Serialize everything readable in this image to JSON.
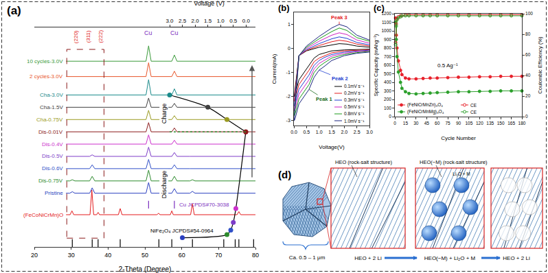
{
  "chart_data": [
    {
      "type": "line",
      "title": "(a)",
      "xlabel": "2-Theta (Degree)",
      "xlim": [
        20,
        80
      ],
      "xticks": [
        20,
        30,
        40,
        50,
        60,
        70,
        80
      ],
      "ylim": [
        -0.3,
        14
      ],
      "tick_labels": "x",
      "grid": false,
      "x": [
        28.6,
        29.6,
        30.3,
        31.0,
        35.0,
        35.7,
        36.4,
        50.3,
        51.0,
        51.7,
        57.3,
        58.0,
        58.7,
        62.2,
        62.9,
        63.6,
        80
      ],
      "series": [
        {
          "name": "10 cycles-3.0V",
          "color": "#3a9a3a",
          "values": [
            11.8,
            11.8,
            11.8,
            11.8,
            11.8,
            11.8,
            11.8,
            11.8,
            12.8,
            11.8,
            11.8,
            12.2,
            11.8,
            11.8,
            11.8,
            11.8,
            11.8
          ]
        },
        {
          "name": "2 cycles-3.0V",
          "color": "#e8552a",
          "values": [
            10.8,
            10.8,
            10.8,
            10.8,
            10.8,
            10.8,
            10.8,
            10.8,
            11.7,
            10.8,
            10.8,
            11.15,
            10.8,
            10.8,
            10.8,
            10.8,
            10.8
          ]
        },
        {
          "name": "Cha-3.0V",
          "color": "#1a8a8a",
          "values": [
            9.6,
            9.6,
            9.6,
            9.6,
            9.6,
            9.6,
            9.6,
            9.6,
            10.6,
            9.6,
            9.6,
            10.0,
            9.6,
            9.6,
            9.6,
            9.6,
            9.6
          ]
        },
        {
          "name": "Cha-1.5V",
          "color": "#404040",
          "values": [
            8.8,
            8.8,
            8.8,
            8.8,
            8.8,
            8.8,
            8.8,
            8.8,
            9.4,
            8.8,
            8.8,
            9.05,
            8.8,
            8.8,
            8.8,
            8.8,
            8.8
          ]
        },
        {
          "name": "Cha-0.75V",
          "color": "#9a9a20",
          "values": [
            8.0,
            8.0,
            8.0,
            8.0,
            8.0,
            8.0,
            8.0,
            8.0,
            8.6,
            8.0,
            8.0,
            8.25,
            8.0,
            8.0,
            8.0,
            8.0,
            8.0
          ]
        },
        {
          "name": "Dis-0.01V",
          "color": "#8b1a1a",
          "values": [
            7.2,
            7.2,
            7.2,
            7.2,
            7.2,
            7.2,
            7.2,
            7.2,
            7.8,
            7.2,
            7.2,
            7.45,
            7.2,
            7.2,
            7.2,
            7.2,
            7.2
          ]
        },
        {
          "name": "Dis-0.4V",
          "color": "#cc2fcc",
          "values": [
            6.4,
            6.4,
            6.4,
            6.4,
            6.4,
            6.4,
            6.4,
            6.4,
            7.0,
            6.4,
            6.4,
            6.65,
            6.4,
            6.4,
            6.4,
            6.4,
            6.4
          ]
        },
        {
          "name": "Dis-0.5V",
          "color": "#7d3cc8",
          "values": [
            5.6,
            5.6,
            5.6,
            5.6,
            5.6,
            5.7,
            5.6,
            5.6,
            6.2,
            5.6,
            5.6,
            5.85,
            5.6,
            5.6,
            5.6,
            5.6,
            5.6
          ]
        },
        {
          "name": "Dis-0.6V",
          "color": "#3050c8",
          "values": [
            4.8,
            4.8,
            4.8,
            4.8,
            4.8,
            5.05,
            4.8,
            4.8,
            5.4,
            4.8,
            4.8,
            5.05,
            4.8,
            4.8,
            4.8,
            4.8,
            4.8
          ]
        },
        {
          "name": "Dis-0.75V",
          "color": "#2e8b2e",
          "values": [
            4.0,
            4.0,
            4.08,
            4.0,
            4.0,
            4.3,
            4.0,
            4.0,
            4.7,
            4.0,
            4.0,
            4.3,
            4.0,
            4.0,
            4.08,
            4.0,
            4.0
          ]
        },
        {
          "name": "Pristine",
          "color": "#2a3fc0",
          "values": [
            3.2,
            3.2,
            3.3,
            3.2,
            3.2,
            3.55,
            3.2,
            3.2,
            3.9,
            3.2,
            3.2,
            3.5,
            3.2,
            3.2,
            3.32,
            3.2,
            3.2
          ]
        },
        {
          "name": "(FeCoNiCrMn)O",
          "color": "#e41a1c",
          "x": [
            28.6,
            29.7,
            30.2,
            30.7,
            35.1,
            35.6,
            36.1,
            36.9,
            37.3,
            37.7,
            42.8,
            43.3,
            43.8,
            53.3,
            53.7,
            54.1,
            56.9,
            57.3,
            57.7,
            62.4,
            62.9,
            63.4,
            75.0,
            75.5,
            76.0,
            80
          ],
          "values": [
            1.8,
            1.8,
            2.05,
            1.8,
            1.8,
            3.4,
            1.8,
            1.8,
            1.95,
            1.8,
            1.8,
            2.2,
            1.8,
            1.8,
            1.9,
            1.8,
            1.8,
            2.05,
            1.8,
            1.8,
            2.5,
            1.8,
            1.8,
            2.0,
            1.8,
            1.8
          ]
        }
      ],
      "references": [
        {
          "name": "Cu JCPDS#70-3038",
          "label": "Cu",
          "color": "#7b2fbe",
          "x": [
            51.0,
            58.0
          ]
        },
        {
          "name": "NiFe₂O₄ JCPDS#54-0964",
          "color": "#000000",
          "x": [
            30.3,
            35.7,
            37.3,
            43.3,
            53.8,
            57.3,
            62.9,
            71.4,
            74.5,
            75.5,
            79.5
          ]
        }
      ],
      "annotations": [
        {
          "text": "(220)",
          "x": 31.3,
          "color": "#e02020"
        },
        {
          "text": "(311)",
          "x": 34.6,
          "color": "#e02020"
        },
        {
          "text": "(222)",
          "x": 37.9,
          "color": "#e02020"
        }
      ]
    },
    {
      "type": "line",
      "xlabel": "Voltage (V)",
      "xlim": [
        3.0,
        -0.1
      ],
      "xticks": [
        {
          "value": 3,
          "label": "3.0"
        },
        {
          "value": 2.5,
          "label": "2.5"
        },
        {
          "value": 2,
          "label": "2.0"
        },
        {
          "value": 1.5,
          "label": "1.5"
        },
        {
          "value": 1,
          "label": "1.0"
        },
        {
          "value": 0.5,
          "label": "0.5"
        },
        {
          "value": 0,
          "label": "0.0"
        }
      ],
      "ylim": [
        -0.3,
        14
      ],
      "tick_labels": "x",
      "marker": "circle",
      "series": [
        {
          "name": "Discharge",
          "color": "#000000",
          "x": [
            2.5,
            0.75,
            0.6,
            0.5,
            0.4,
            0.01
          ],
          "values": [
            0.3,
            0.5,
            0.8,
            1.3,
            2.2,
            7.2
          ],
          "colors": [
            "#2a3fc0",
            "#2e8b2e",
            "#3050c8",
            "#7d3cc8",
            "#cc2fcc",
            "#8b1a1a"
          ]
        },
        {
          "name": "Charge",
          "color": "#000000",
          "x": [
            0.01,
            0.75,
            1.5,
            3.0
          ],
          "values": [
            7.2,
            8.0,
            8.8,
            9.6
          ],
          "colors": [
            "#8b1a1a",
            "#9a9a20",
            "#404040",
            "#1a8a8a"
          ]
        }
      ]
    },
    {
      "type": "line",
      "title": "(b)",
      "xlabel": "Voltage(V)",
      "ylabel": "Current(mA)",
      "xlim": [
        0,
        3.0
      ],
      "xticks": [
        {
          "value": 0,
          "label": "0.0"
        },
        0.5,
        {
          "value": 1,
          "label": "1.0"
        },
        1.5,
        {
          "value": 2,
          "label": "2.0"
        },
        2.5,
        {
          "value": 3,
          "label": "3.0"
        }
      ],
      "ylim": [
        -3.2,
        1.5
      ],
      "yticks": [
        -3,
        -2,
        -1,
        0,
        1
      ],
      "grid": false,
      "legend": "lower right",
      "x": [
        3.0,
        2.5,
        2.0,
        1.5,
        1.2,
        1.0,
        0.8,
        0.6,
        0.4,
        0.2,
        0.05,
        0.01,
        0.2,
        0.5,
        1.0,
        1.5,
        1.8,
        2.1,
        2.5,
        3.0
      ],
      "series": [
        {
          "name": "0.1mV s⁻¹",
          "color": "#000000",
          "values": [
            -0.03,
            -0.04,
            -0.06,
            -0.1,
            -0.18,
            -0.25,
            -0.4,
            -0.7,
            -1.0,
            -1.3,
            -1.9,
            -2.0,
            -0.3,
            -0.1,
            0.05,
            0.15,
            0.2,
            0.18,
            0.1,
            0.05
          ]
        },
        {
          "name": "0.2mV s⁻¹",
          "color": "#e41a1c",
          "values": [
            -0.05,
            -0.07,
            -0.1,
            -0.18,
            -0.3,
            -0.4,
            -0.55,
            -0.9,
            -1.2,
            -1.5,
            -2.1,
            -2.2,
            -0.3,
            -0.08,
            0.12,
            0.28,
            0.34,
            0.3,
            0.18,
            0.1
          ]
        },
        {
          "name": "0.3mV s⁻¹",
          "color": "#1f3fd0",
          "values": [
            -0.07,
            -0.1,
            -0.15,
            -0.25,
            -0.38,
            -0.5,
            -0.7,
            -1.1,
            -1.4,
            -1.7,
            -2.3,
            -2.4,
            -0.3,
            -0.05,
            0.2,
            0.4,
            0.48,
            0.42,
            0.25,
            0.15
          ]
        },
        {
          "name": "0.5mV s⁻¹",
          "color": "#d020c0",
          "values": [
            -0.1,
            -0.13,
            -0.2,
            -0.32,
            -0.5,
            -0.62,
            -0.85,
            -1.3,
            -1.6,
            -1.9,
            -2.5,
            -2.6,
            -0.3,
            0.0,
            0.3,
            0.55,
            0.65,
            0.58,
            0.35,
            0.22
          ]
        },
        {
          "name": "0.8mV s⁻¹",
          "color": "#1a9a1a",
          "values": [
            -0.12,
            -0.17,
            -0.25,
            -0.4,
            -0.6,
            -0.75,
            -1.0,
            -1.5,
            -1.8,
            -2.1,
            -2.7,
            -2.8,
            -0.3,
            0.05,
            0.4,
            0.7,
            0.85,
            0.75,
            0.45,
            0.3
          ]
        },
        {
          "name": "1.0mV s⁻¹",
          "color": "#1a237e",
          "values": [
            -0.15,
            -0.2,
            -0.3,
            -0.5,
            -0.75,
            -0.9,
            -1.2,
            -1.7,
            -2.0,
            -2.3,
            -2.9,
            -3.0,
            -0.3,
            0.1,
            0.5,
            0.85,
            1.0,
            0.9,
            0.55,
            0.35
          ]
        }
      ],
      "annotations": [
        {
          "text": "Peak 1",
          "x": 0.6,
          "y": -1.7,
          "color": "#1a6b1a"
        },
        {
          "text": "Peak 2",
          "x": 1.0,
          "y": -0.9,
          "color": "#1f3fd0"
        },
        {
          "text": "Peak 3",
          "x": 1.8,
          "y": 1.0,
          "color": "#e41a1c"
        }
      ]
    },
    {
      "type": "line",
      "title": "(c)",
      "xlabel": "Cycle Number",
      "ylabel": "Specific Capacity (mAhg⁻¹)",
      "y2label": "Coulombic Efficiency (%)",
      "xlim": [
        0,
        180
      ],
      "xticks": [
        0,
        15,
        30,
        45,
        60,
        75,
        90,
        105,
        120,
        135,
        150,
        165,
        180
      ],
      "ylim": [
        0,
        1200
      ],
      "yticks": [
        0,
        100,
        200,
        300,
        400,
        500,
        600,
        700,
        800,
        900,
        1000,
        1100,
        1200
      ],
      "y2lim": [
        0,
        100
      ],
      "y2ticks": [
        0,
        20,
        40,
        60,
        80,
        100
      ],
      "grid": false,
      "legend": "lower left",
      "x": [
        1,
        2,
        3,
        5,
        8,
        10,
        15,
        20,
        30,
        40,
        50,
        60,
        75,
        90,
        105,
        120,
        135,
        150,
        165,
        180
      ],
      "series": [
        {
          "name": "(FeNiCrMnZn)₃O₄",
          "color": "#e8212b",
          "marker": "circle",
          "values": [
            1150,
            950,
            800,
            650,
            540,
            490,
            450,
            440,
            440,
            445,
            450,
            450,
            455,
            460,
            460,
            465,
            465,
            470,
            470,
            470
          ]
        },
        {
          "name": "(FeNiCrMnMg)₃O₄",
          "color": "#2ca02c",
          "marker": "circle",
          "values": [
            1100,
            900,
            700,
            520,
            400,
            330,
            290,
            270,
            265,
            270,
            275,
            280,
            285,
            290,
            290,
            295,
            295,
            300,
            300,
            300
          ]
        },
        {
          "name": "CE",
          "color": "#e8212b",
          "marker": "circle-open",
          "axis": "y2",
          "values": [
            72,
            90,
            95,
            97,
            98,
            98,
            99,
            99,
            99,
            99,
            99,
            99,
            99,
            99,
            99,
            99,
            99,
            99,
            99,
            99
          ]
        },
        {
          "name": "CE",
          "color": "#2ca02c",
          "marker": "circle-open",
          "axis": "y2",
          "values": [
            70,
            88,
            94,
            96,
            97,
            98,
            98,
            98,
            98,
            98,
            98,
            98,
            98,
            98,
            98,
            98,
            98,
            98,
            98,
            98
          ]
        }
      ],
      "annotations": [
        {
          "text": "0.5 Ag⁻¹",
          "x": 75,
          "y": 600
        }
      ]
    }
  ],
  "diagram": {
    "title": "(d)",
    "size_label": "Ca. 0.5 – 1 μm",
    "stages": [
      {
        "label": "HEO (rock-salt structure)",
        "reaction": "HEO + 2 Li"
      },
      {
        "label": "HEO(−M) (rock-salt structure)",
        "particles": "Li₂O + M",
        "reaction": "HEO(−M) + Li₂O + M"
      },
      {
        "reaction": "HEO + 2 Li"
      }
    ]
  }
}
